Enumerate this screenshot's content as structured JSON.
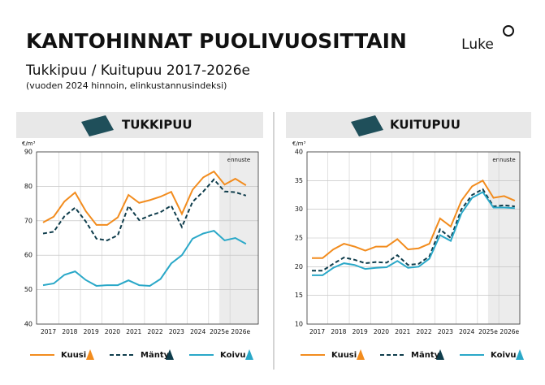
{
  "header": {
    "title": "KANTOHINNAT PUOLIVUOSITTAIN",
    "subtitle": "Tukkipuu / Kuitupuu 2017-2026e",
    "note": "(vuoden 2024 hinnoin, elinkustannusindeksi)",
    "logo": "Luke"
  },
  "chart_data": [
    {
      "type": "line",
      "title": "TUKKIPUU",
      "y_label": "€/m³",
      "annotation": "ennuste",
      "categories": [
        "2017",
        null,
        "2018",
        null,
        "2019",
        null,
        "2020",
        null,
        "2021",
        null,
        "2022",
        null,
        "2023",
        null,
        "2024",
        null,
        "2025e",
        null,
        "2026e",
        null
      ],
      "ylim": [
        40,
        90
      ],
      "yticks": [
        40,
        50,
        60,
        70,
        80,
        90
      ],
      "grid": true,
      "series": [
        {
          "name": "Kuusi",
          "color": "#f28c1e",
          "values": [
            69.5,
            71.2,
            75.6,
            78.2,
            72.8,
            68.8,
            68.8,
            71,
            77.5,
            75.2,
            76,
            77,
            78.4,
            72,
            79,
            82.6,
            84.3,
            80.5,
            82.2,
            80.3
          ]
        },
        {
          "name": "Mänty",
          "color": "#0f3d4c",
          "values": [
            66.3,
            66.8,
            71.3,
            73.8,
            69.8,
            64.8,
            64.3,
            65.8,
            74.3,
            70.2,
            71.5,
            72.5,
            74.4,
            68.2,
            75.5,
            78.5,
            82,
            78.5,
            78.3,
            77.3
          ]
        },
        {
          "name": "Koivu",
          "color": "#2aa8c8",
          "values": [
            51.3,
            51.8,
            54.3,
            55.3,
            52.8,
            51.1,
            51.3,
            51.3,
            52.7,
            51.3,
            51.1,
            53.1,
            57.6,
            60,
            64.8,
            66.3,
            67.1,
            64.3,
            65,
            63.3
          ]
        }
      ]
    },
    {
      "type": "line",
      "title": "KUITUPUU",
      "y_label": "€/m³",
      "annotation": "ennuste",
      "categories": [
        "2017",
        null,
        "2018",
        null,
        "2019",
        null,
        "2020",
        null,
        "2021",
        null,
        "2022",
        null,
        "2023",
        null,
        "2024",
        null,
        "2025e",
        null,
        "2026e",
        null
      ],
      "ylim": [
        10,
        40
      ],
      "yticks": [
        10,
        15,
        20,
        25,
        30,
        35,
        40
      ],
      "grid": true,
      "series": [
        {
          "name": "Kuusi",
          "color": "#f28c1e",
          "values": [
            21.5,
            21.5,
            23,
            24,
            23.5,
            22.8,
            23.5,
            23.5,
            24.8,
            23,
            23.2,
            24,
            28.4,
            27,
            31.5,
            34,
            35,
            32,
            32.3,
            31.5
          ]
        },
        {
          "name": "Mänty",
          "color": "#0f3d4c",
          "values": [
            19.3,
            19.3,
            20.5,
            21.6,
            21.2,
            20.6,
            20.8,
            20.7,
            22,
            20.3,
            20.5,
            21.8,
            26.5,
            25,
            30,
            32.5,
            33.5,
            30.5,
            30.7,
            30.5
          ]
        },
        {
          "name": "Koivu",
          "color": "#2aa8c8",
          "values": [
            18.5,
            18.5,
            19.8,
            20.6,
            20.3,
            19.6,
            19.8,
            19.9,
            21,
            19.8,
            20,
            21.4,
            25.5,
            24.5,
            29.3,
            32,
            33,
            30.3,
            30.3,
            30.2
          ]
        }
      ]
    }
  ]
}
